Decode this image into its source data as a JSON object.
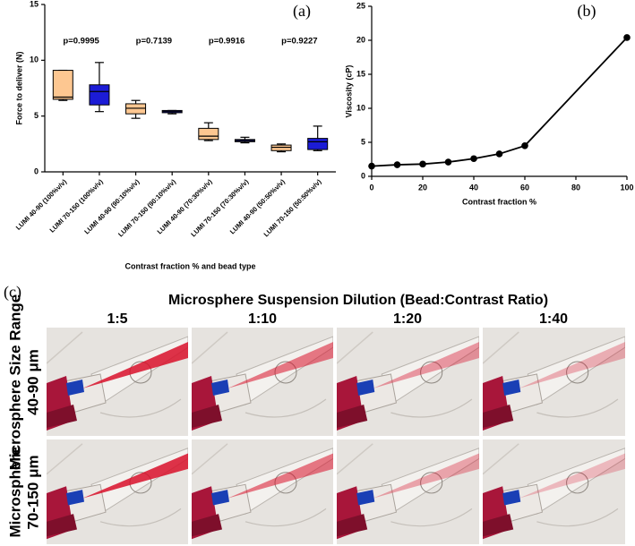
{
  "chart_data": [
    {
      "type": "box",
      "panel_label": "(a)",
      "y_label": "Force to deliver (N)",
      "x_label": "Contrast fraction % and bead type",
      "categories": [
        "LUMI 40-90 (100%v/v)",
        "LUMI 70-150 (100%v/v)",
        "LUMI 40-90 (90:10%v/v)",
        "LUMI 70-150 (90:10%v/v)",
        "LUMI 40-90 (70:30%v/v)",
        "LUMI 70-150 (70:30%v/v)",
        "LUMI 40-90 (50:50%v/v)",
        "LUMI 70-150 (50:50%v/v)"
      ],
      "boxes": [
        {
          "min": 6.4,
          "q1": 6.5,
          "median": 6.7,
          "q3": 9.1,
          "max": 9.1,
          "color": "#fdc791"
        },
        {
          "min": 5.4,
          "q1": 6.0,
          "median": 7.2,
          "q3": 7.8,
          "max": 9.8,
          "color": "#1c1cd6"
        },
        {
          "min": 4.8,
          "q1": 5.2,
          "median": 5.7,
          "q3": 6.1,
          "max": 6.4,
          "color": "#fdc791"
        },
        {
          "min": 5.2,
          "q1": 5.3,
          "median": 5.4,
          "q3": 5.5,
          "max": 5.5,
          "color": "#1c1cd6"
        },
        {
          "min": 2.8,
          "q1": 2.9,
          "median": 3.2,
          "q3": 3.9,
          "max": 4.4,
          "color": "#fdc791"
        },
        {
          "min": 2.6,
          "q1": 2.7,
          "median": 2.8,
          "q3": 2.9,
          "max": 3.1,
          "color": "#1c1cd6"
        },
        {
          "min": 1.8,
          "q1": 1.9,
          "median": 2.2,
          "q3": 2.4,
          "max": 2.5,
          "color": "#fdc791"
        },
        {
          "min": 1.9,
          "q1": 2.0,
          "median": 2.7,
          "q3": 3.0,
          "max": 4.1,
          "color": "#1c1cd6"
        }
      ],
      "annotations": [
        "p=0.9995",
        "p=0.7139",
        "p=0.9916",
        "p=0.9227"
      ],
      "ylim": [
        0,
        15
      ],
      "yticks": [
        0,
        5,
        10,
        15
      ]
    },
    {
      "type": "line",
      "panel_label": "(b)",
      "y_label": "Viscosity (cP)",
      "x_label": "Contrast fraction %",
      "x": [
        0,
        10,
        20,
        30,
        40,
        50,
        60,
        100
      ],
      "y": [
        1.5,
        1.7,
        1.8,
        2.1,
        2.6,
        3.3,
        4.5,
        20.4
      ],
      "color": "#000000",
      "xlim": [
        0,
        100
      ],
      "xticks": [
        0,
        20,
        40,
        60,
        80,
        100
      ],
      "ylim": [
        0,
        25
      ],
      "yticks": [
        0,
        5,
        10,
        15,
        20,
        25
      ]
    }
  ],
  "panel_c": {
    "panel_label": "(c)",
    "title": "Microsphere Suspension Dilution (Bead:Contrast Ratio)",
    "columns": [
      "1:5",
      "1:10",
      "1:20",
      "1:40"
    ],
    "rows": [
      [
        "Microsphere Size Range",
        "40-90 μm"
      ],
      [
        "Microsphere",
        "70-150 μm"
      ]
    ]
  }
}
